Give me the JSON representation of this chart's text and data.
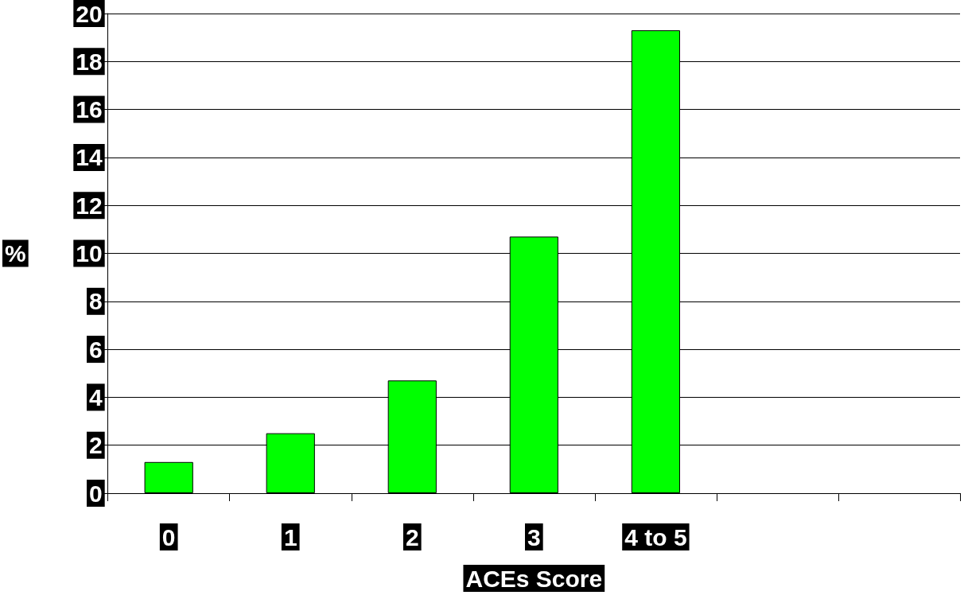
{
  "chart_data": {
    "type": "bar",
    "xlabel": "ACEs Score",
    "ylabel": "%",
    "categories": [
      "0",
      "1",
      "2",
      "3",
      "4 to 5",
      null,
      null
    ],
    "values": [
      1.3,
      2.5,
      4.7,
      10.7,
      19.3,
      null,
      null
    ],
    "color": "#00ff00",
    "ylim": [
      0,
      20
    ],
    "yticks": [
      0,
      2,
      4,
      6,
      8,
      10,
      12,
      14,
      16,
      18,
      20
    ],
    "grid": "y"
  }
}
